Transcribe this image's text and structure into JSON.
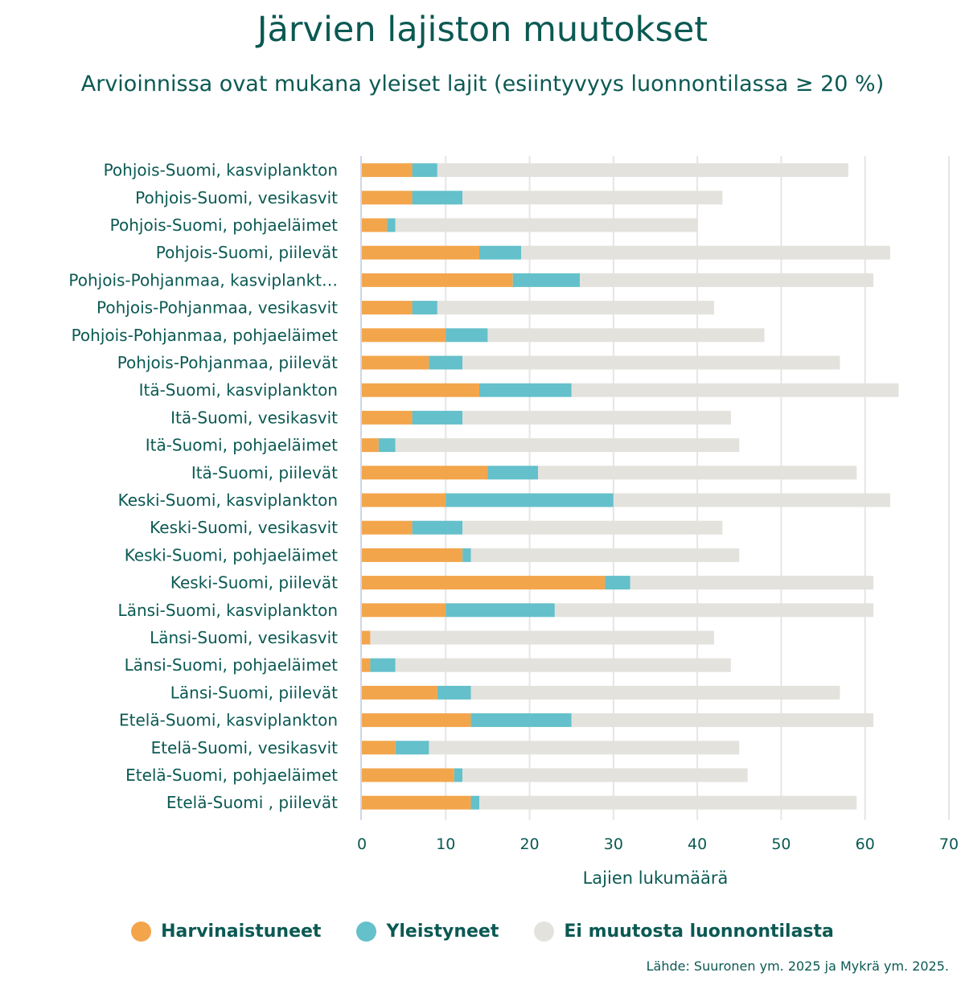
{
  "chart_data": {
    "type": "bar",
    "orientation": "horizontal",
    "stacked": true,
    "title": "Järvien lajiston muutokset",
    "subtitle": "Arvioinnissa ovat mukana yleiset lajit (esiintyvyys luonnontilassa ≥ 20 %)",
    "xlabel": "Lajien lukumäärä",
    "ylabel": "",
    "xlim": [
      0,
      70
    ],
    "xticks": [
      "0",
      "10",
      "20",
      "30",
      "40",
      "50",
      "60",
      "70"
    ],
    "grid": true,
    "legend_position": "bottom",
    "categories": [
      "Pohjois-Suomi, kasviplankton",
      "Pohjois-Suomi, vesikasvit",
      "Pohjois-Suomi, pohjaeläimet",
      "Pohjois-Suomi, piilevät",
      "Pohjois-Pohjanmaa, kasviplankt…",
      "Pohjois-Pohjanmaa, vesikasvit",
      "Pohjois-Pohjanmaa, pohjaeläimet",
      "Pohjois-Pohjanmaa, piilevät",
      "Itä-Suomi, kasviplankton",
      "Itä-Suomi, vesikasvit",
      "Itä-Suomi, pohjaeläimet",
      "Itä-Suomi, piilevät",
      "Keski-Suomi, kasviplankton",
      "Keski-Suomi, vesikasvit",
      "Keski-Suomi, pohjaeläimet",
      "Keski-Suomi, piilevät",
      "Länsi-Suomi, kasviplankton",
      "Länsi-Suomi, vesikasvit",
      "Länsi-Suomi, pohjaeläimet",
      "Länsi-Suomi, piilevät",
      "Etelä-Suomi, kasviplankton",
      "Etelä-Suomi, vesikasvit",
      "Etelä-Suomi, pohjaeläimet",
      "Etelä-Suomi , piilevät"
    ],
    "series": [
      {
        "name": "Harvinaistuneet",
        "color": "#f3a54c",
        "values": [
          6,
          6,
          3,
          14,
          18,
          6,
          10,
          8,
          14,
          6,
          2,
          15,
          10,
          6,
          12,
          29,
          10,
          1,
          1,
          9,
          13,
          4,
          11,
          13
        ]
      },
      {
        "name": "Yleistyneet",
        "color": "#64c0ca",
        "values": [
          3,
          6,
          1,
          5,
          8,
          3,
          5,
          4,
          11,
          6,
          2,
          6,
          20,
          6,
          1,
          3,
          13,
          0,
          3,
          4,
          12,
          4,
          1,
          1
        ]
      },
      {
        "name": "Ei muutosta luonnontilasta",
        "color": "#e3e2dd",
        "values": [
          49,
          31,
          36,
          44,
          35,
          33,
          33,
          45,
          39,
          32,
          41,
          38,
          33,
          31,
          32,
          29,
          38,
          41,
          40,
          44,
          36,
          37,
          34,
          45
        ]
      }
    ]
  },
  "legend": {
    "items": [
      {
        "label": "Harvinaistuneet",
        "color": "#f3a54c"
      },
      {
        "label": "Yleistyneet",
        "color": "#64c0ca"
      },
      {
        "label": "Ei muutosta luonnontilasta",
        "color": "#e3e2dd"
      }
    ]
  },
  "source": "Lähde: Suuronen ym. 2025 ja Mykrä ym. 2025."
}
